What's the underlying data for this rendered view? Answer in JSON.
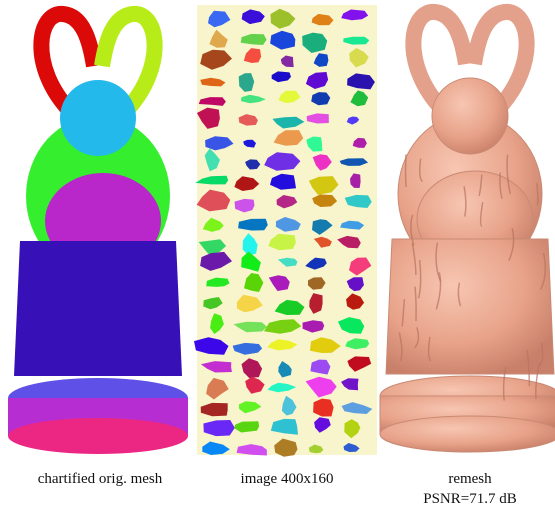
{
  "panels": [
    {
      "caption": "chartified orig. mesh"
    },
    {
      "caption": "image 400x160"
    },
    {
      "caption": "remesh",
      "subcaption": "PSNR=71.7 dB"
    }
  ]
}
